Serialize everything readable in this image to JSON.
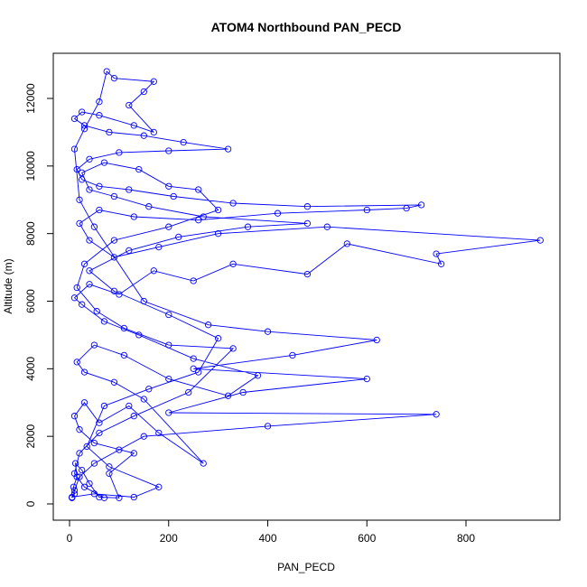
{
  "chart_data": {
    "type": "scatter",
    "title": "ATOM4 Northbound PAN_PECD",
    "xlabel": "PAN_PECD",
    "ylabel": "Altitude (m)",
    "xlim": [
      0,
      1000
    ],
    "ylim": [
      0,
      13000
    ],
    "xticks": [
      "0",
      "200",
      "400",
      "600",
      "800"
    ],
    "yticks": [
      "0",
      "2000",
      "4000",
      "6000",
      "8000",
      "10000",
      "12000"
    ],
    "grid": false,
    "legend": "none",
    "colors": {
      "series": "#0000ff",
      "axis": "#000000"
    },
    "series": [
      {
        "style": "lines+open-circles",
        "points": [
          [
            5,
            180
          ],
          [
            10,
            300
          ],
          [
            8,
            500
          ],
          [
            15,
            800
          ],
          [
            12,
            1200
          ],
          [
            25,
            1000
          ],
          [
            40,
            600
          ],
          [
            60,
            200
          ],
          [
            100,
            180
          ],
          [
            80,
            900
          ],
          [
            130,
            1500
          ],
          [
            50,
            1800
          ],
          [
            20,
            2200
          ],
          [
            10,
            2600
          ],
          [
            30,
            3000
          ],
          [
            60,
            2400
          ],
          [
            120,
            2900
          ],
          [
            180,
            2100
          ],
          [
            270,
            1200
          ],
          [
            150,
            3100
          ],
          [
            90,
            3600
          ],
          [
            30,
            3900
          ],
          [
            15,
            4200
          ],
          [
            50,
            4700
          ],
          [
            110,
            4400
          ],
          [
            200,
            3700
          ],
          [
            320,
            3200
          ],
          [
            380,
            3800
          ],
          [
            250,
            4300
          ],
          [
            140,
            5000
          ],
          [
            70,
            5400
          ],
          [
            25,
            5900
          ],
          [
            10,
            6100
          ],
          [
            40,
            6500
          ],
          [
            100,
            6200
          ],
          [
            170,
            6900
          ],
          [
            250,
            6600
          ],
          [
            330,
            7100
          ],
          [
            480,
            6800
          ],
          [
            560,
            7700
          ],
          [
            750,
            7100
          ],
          [
            740,
            7400
          ],
          [
            950,
            7800
          ],
          [
            520,
            8200
          ],
          [
            300,
            8000
          ],
          [
            180,
            7600
          ],
          [
            90,
            7300
          ],
          [
            40,
            7800
          ],
          [
            20,
            8300
          ],
          [
            60,
            8700
          ],
          [
            130,
            8500
          ],
          [
            260,
            8400
          ],
          [
            420,
            8600
          ],
          [
            600,
            8700
          ],
          [
            680,
            8750
          ],
          [
            710,
            8850
          ],
          [
            480,
            8800
          ],
          [
            330,
            8900
          ],
          [
            210,
            9100
          ],
          [
            120,
            9300
          ],
          [
            60,
            9400
          ],
          [
            25,
            9600
          ],
          [
            15,
            9900
          ],
          [
            40,
            10200
          ],
          [
            100,
            10400
          ],
          [
            200,
            10450
          ],
          [
            320,
            10500
          ],
          [
            230,
            10700
          ],
          [
            150,
            10900
          ],
          [
            80,
            11000
          ],
          [
            30,
            11200
          ],
          [
            10,
            11400
          ],
          [
            25,
            11600
          ],
          [
            60,
            11500
          ],
          [
            130,
            11200
          ],
          [
            170,
            11000
          ],
          [
            120,
            11800
          ],
          [
            150,
            12200
          ],
          [
            170,
            12500
          ],
          [
            90,
            12600
          ],
          [
            75,
            12800
          ],
          [
            60,
            11900
          ],
          [
            30,
            11100
          ],
          [
            10,
            10500
          ],
          [
            20,
            9000
          ],
          [
            50,
            8200
          ],
          [
            150,
            6000
          ],
          [
            280,
            5300
          ],
          [
            400,
            5100
          ],
          [
            620,
            4850
          ],
          [
            450,
            4400
          ],
          [
            250,
            4000
          ],
          [
            600,
            3700
          ],
          [
            350,
            3300
          ],
          [
            200,
            2700
          ],
          [
            740,
            2650
          ],
          [
            400,
            2300
          ],
          [
            150,
            2000
          ],
          [
            100,
            1600
          ],
          [
            50,
            1200
          ],
          [
            20,
            800
          ],
          [
            10,
            400
          ],
          [
            5,
            200
          ],
          [
            50,
            300
          ],
          [
            130,
            200
          ],
          [
            180,
            500
          ],
          [
            80,
            1100
          ],
          [
            35,
            1700
          ],
          [
            70,
            2900
          ],
          [
            160,
            3400
          ],
          [
            260,
            3900
          ],
          [
            300,
            4900
          ],
          [
            200,
            5600
          ],
          [
            90,
            6300
          ],
          [
            40,
            6900
          ],
          [
            120,
            7500
          ],
          [
            220,
            7900
          ],
          [
            360,
            8200
          ],
          [
            480,
            8300
          ],
          [
            270,
            8500
          ],
          [
            160,
            8800
          ],
          [
            90,
            9100
          ],
          [
            40,
            9300
          ],
          [
            25,
            9800
          ],
          [
            70,
            10100
          ],
          [
            140,
            9900
          ],
          [
            200,
            9400
          ],
          [
            260,
            9300
          ],
          [
            300,
            8700
          ],
          [
            200,
            8200
          ],
          [
            90,
            7800
          ],
          [
            30,
            7100
          ],
          [
            15,
            6400
          ],
          [
            55,
            5700
          ],
          [
            110,
            5200
          ],
          [
            200,
            4700
          ],
          [
            330,
            4600
          ],
          [
            240,
            3300
          ],
          [
            130,
            2600
          ],
          [
            60,
            2100
          ],
          [
            20,
            1500
          ],
          [
            10,
            900
          ],
          [
            30,
            500
          ],
          [
            70,
            180
          ]
        ]
      }
    ]
  }
}
